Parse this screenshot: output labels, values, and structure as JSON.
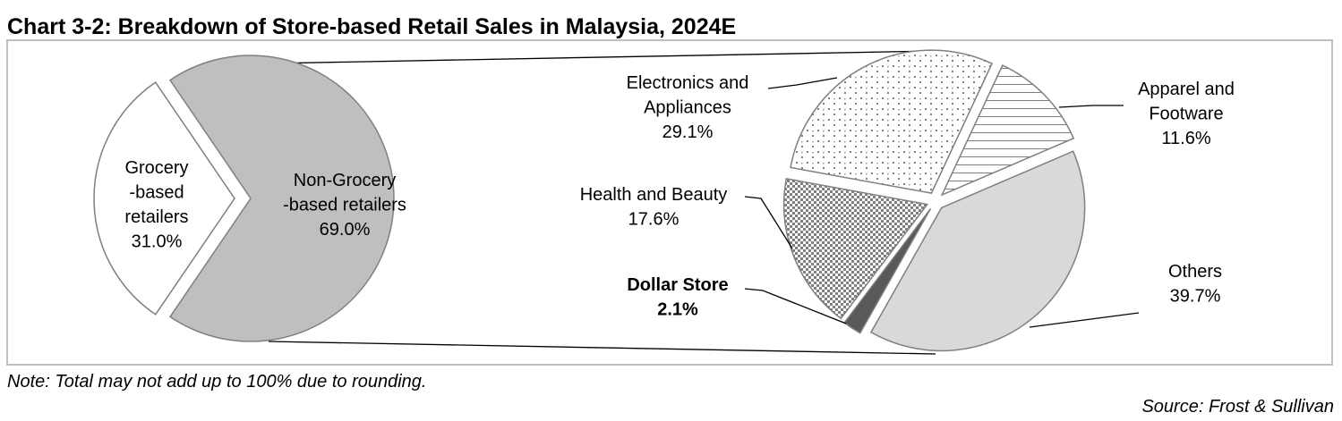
{
  "chart_data": {
    "type": "pie-of-pie",
    "title": "Chart 3-2: Breakdown of Store-based Retail Sales in Malaysia, 2024E",
    "note": "Note: Total may not add up to 100% due to rounding.",
    "source": "Source: Frost & Sullivan",
    "main": {
      "categories": [
        "Grocery\n-based\nretailers",
        "Non-Grocery\n-based retailers"
      ],
      "values": [
        31.0,
        69.0
      ],
      "value_labels": [
        "31.0%",
        "69.0%"
      ],
      "colors": [
        "#ffffff",
        "#bfbfbf"
      ]
    },
    "detail": {
      "categories": [
        "Apparel and\nFootware",
        "Others",
        "Dollar Store",
        "Health and Beauty",
        "Electronics and\nAppliances"
      ],
      "values": [
        11.6,
        39.7,
        2.1,
        17.6,
        29.1
      ],
      "value_labels": [
        "11.6%",
        "39.7%",
        "2.1%",
        "17.6%",
        "29.1%"
      ],
      "patterns": [
        "lines",
        "solid",
        "solid",
        "checker",
        "dots"
      ],
      "colors": [
        "#7f7f7f",
        "#d9d9d9",
        "#595959",
        "#7f7f7f",
        "#7f7f7f"
      ],
      "bold": [
        false,
        false,
        true,
        false,
        false
      ]
    }
  }
}
